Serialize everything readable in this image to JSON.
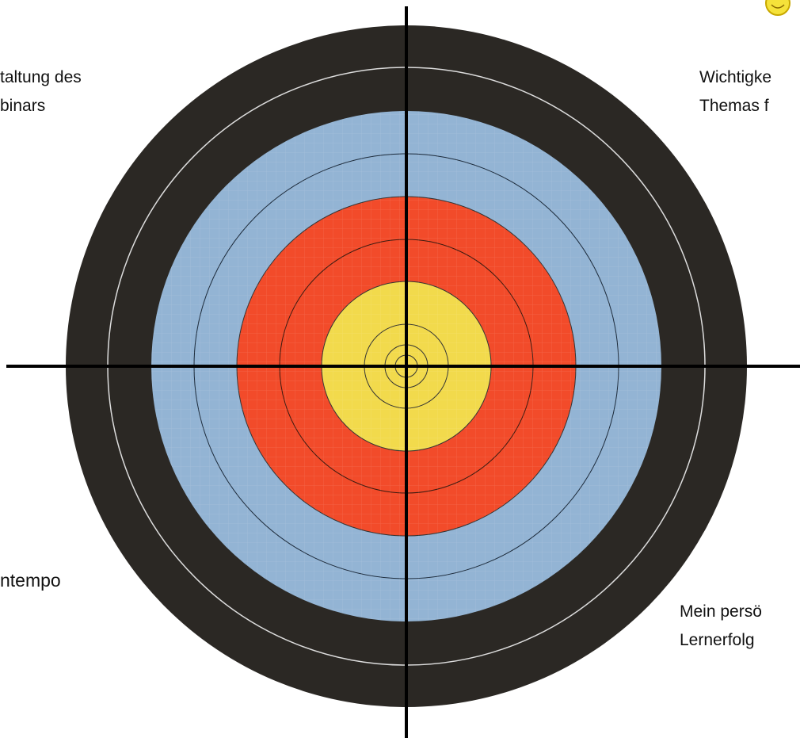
{
  "labels": {
    "top_left": [
      "taltung des",
      "binars"
    ],
    "top_right": [
      "Wichtigke",
      "Themas f"
    ],
    "bottom_left": [
      "ntempo"
    ],
    "bottom_right": [
      "Mein persö",
      "Lernerfolg"
    ]
  }
}
